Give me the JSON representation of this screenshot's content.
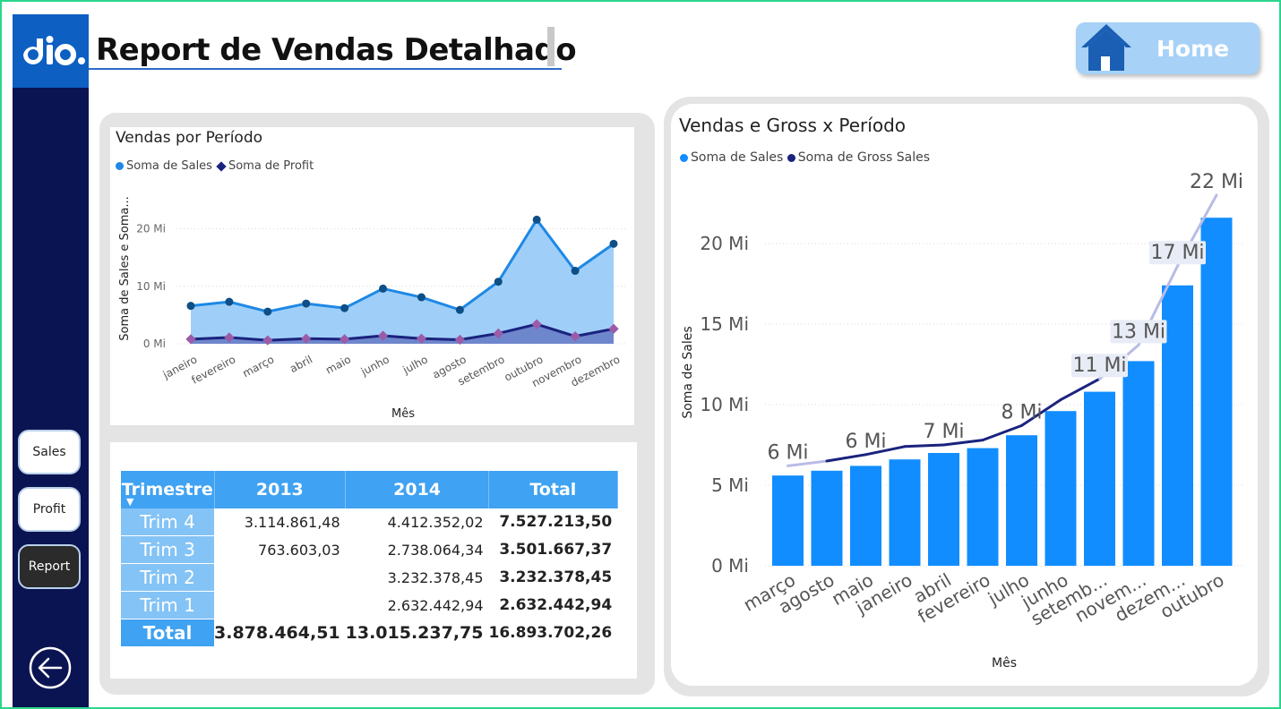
{
  "header": {
    "title": "Report de Vendas Detalhado",
    "home_label": "Home"
  },
  "sidebar": {
    "items": [
      {
        "label": "Sales"
      },
      {
        "label": "Profit"
      },
      {
        "label": "Report"
      }
    ]
  },
  "icons": {
    "logo": "dio-logo",
    "home": "house-icon",
    "back": "back-arrow-icon"
  },
  "colors": {
    "accent": "#0d5fc2",
    "sidebar": "#0b1452",
    "sales_series": "#1e88e5",
    "profit_series": "#1a237e",
    "profit_marker": "#9c5ba8",
    "bar": "#118dff"
  },
  "chart_data": [
    {
      "type": "area",
      "title": "Vendas por Período",
      "xlabel": "Mês",
      "ylabel": "Soma de Sales e Soma...",
      "categories": [
        "janeiro",
        "fevereiro",
        "março",
        "abril",
        "maio",
        "junho",
        "julho",
        "agosto",
        "setembro",
        "outubro",
        "novembro",
        "dezembro"
      ],
      "series": [
        {
          "name": "Soma de  Sales",
          "values": [
            6.6,
            7.3,
            5.6,
            7.0,
            6.2,
            9.6,
            8.1,
            5.9,
            10.8,
            21.6,
            12.7,
            17.4
          ]
        },
        {
          "name": "Soma de Profit",
          "values": [
            0.8,
            1.1,
            0.6,
            0.9,
            0.8,
            1.4,
            0.9,
            0.7,
            1.8,
            3.4,
            1.3,
            2.6
          ]
        }
      ],
      "yticks": [
        "0 Mi",
        "10 Mi",
        "20 Mi"
      ],
      "ylim": [
        0,
        24
      ],
      "legend": "top-left",
      "grid": true
    },
    {
      "type": "bar",
      "title": "Vendas e Gross x Período",
      "xlabel": "Mês",
      "ylabel": "Soma de Sales",
      "categories": [
        "março",
        "agosto",
        "maio",
        "janeiro",
        "abril",
        "fevereiro",
        "julho",
        "junho",
        "setemb...",
        "novem...",
        "dezem...",
        "outubro"
      ],
      "series": [
        {
          "name": "Soma de  Sales",
          "values": [
            5.6,
            5.9,
            6.2,
            6.6,
            7.0,
            7.3,
            8.1,
            9.6,
            10.8,
            12.7,
            17.4,
            21.6
          ]
        },
        {
          "name": "Soma de Gross Sales",
          "values": [
            6.2,
            6.5,
            6.9,
            7.4,
            7.5,
            7.8,
            8.7,
            10.3,
            11.6,
            13.7,
            18.6,
            23.0
          ]
        }
      ],
      "data_labels": [
        {
          "index": 0,
          "label": "6 Mi"
        },
        {
          "index": 2,
          "label": "6 Mi"
        },
        {
          "index": 4,
          "label": "7 Mi"
        },
        {
          "index": 6,
          "label": "8 Mi"
        },
        {
          "index": 8,
          "label": "11 Mi"
        },
        {
          "index": 9,
          "label": "13 Mi"
        },
        {
          "index": 10,
          "label": "17 Mi"
        },
        {
          "index": 11,
          "label": "22 Mi"
        }
      ],
      "yticks": [
        "0 Mi",
        "5 Mi",
        "10 Mi",
        "15 Mi",
        "20 Mi"
      ],
      "ylim": [
        0,
        24
      ],
      "legend": "top-left",
      "grid": true
    },
    {
      "type": "table",
      "corner_label": "Trimestre",
      "columns": [
        "2013",
        "2014",
        "Total"
      ],
      "rows": [
        {
          "label": "Trim 4",
          "values": [
            "3.114.861,48",
            "4.412.352,02",
            "7.527.213,50"
          ]
        },
        {
          "label": "Trim 3",
          "values": [
            "763.603,03",
            "2.738.064,34",
            "3.501.667,37"
          ]
        },
        {
          "label": "Trim 2",
          "values": [
            "",
            "3.232.378,45",
            "3.232.378,45"
          ]
        },
        {
          "label": "Trim 1",
          "values": [
            "",
            "2.632.442,94",
            "2.632.442,94"
          ]
        }
      ],
      "total_row": {
        "label": "Total",
        "values": [
          "3.878.464,51",
          "13.015.237,75",
          "16.893.702,26"
        ]
      }
    }
  ]
}
